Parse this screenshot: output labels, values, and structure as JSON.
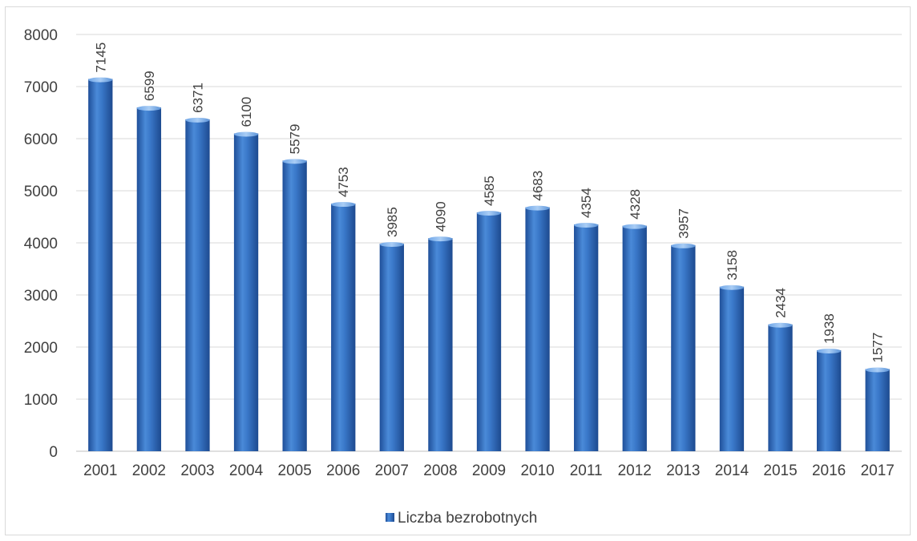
{
  "chart_data": {
    "type": "bar",
    "categories": [
      "2001",
      "2002",
      "2003",
      "2004",
      "2005",
      "2006",
      "2007",
      "2008",
      "2009",
      "2010",
      "2011",
      "2012",
      "2013",
      "2014",
      "2015",
      "2016",
      "2017"
    ],
    "series": [
      {
        "name": "Liczba bezrobotnych",
        "values": [
          7145,
          6599,
          6371,
          6100,
          5579,
          4753,
          3985,
          4090,
          4585,
          4683,
          4354,
          4328,
          3957,
          3158,
          2434,
          1938,
          1577
        ]
      }
    ],
    "ylim": [
      0,
      8000
    ],
    "yticks": [
      0,
      1000,
      2000,
      3000,
      4000,
      5000,
      6000,
      7000,
      8000
    ],
    "grid": true,
    "legend_position": "bottom",
    "bar_color": "#2e6bbf",
    "data_labels": "vertical-above"
  }
}
